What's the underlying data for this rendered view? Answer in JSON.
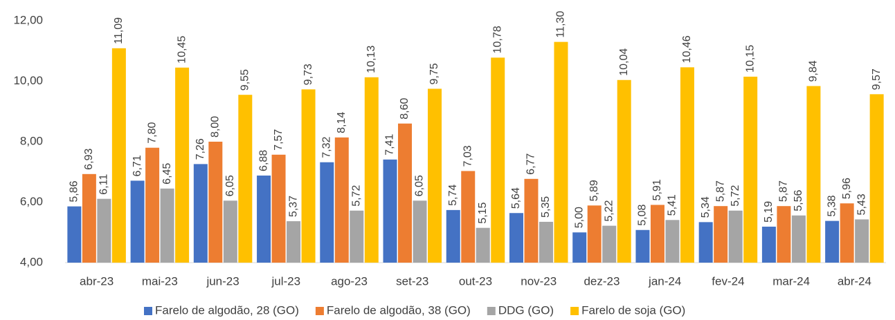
{
  "chart_data": {
    "type": "bar",
    "categories": [
      "abr-23",
      "mai-23",
      "jun-23",
      "jul-23",
      "ago-23",
      "set-23",
      "out-23",
      "nov-23",
      "dez-23",
      "jan-24",
      "fev-24",
      "mar-24",
      "abr-24"
    ],
    "series": [
      {
        "name": "Farelo de algodão, 28 (GO)",
        "color": "#4472c4",
        "values": [
          5.86,
          6.71,
          7.26,
          6.88,
          7.32,
          7.41,
          5.74,
          5.64,
          5.0,
          5.08,
          5.34,
          5.19,
          5.38
        ],
        "value_labels": [
          "5,86",
          "6,71",
          "7,26",
          "6,88",
          "7,32",
          "7,41",
          "5,74",
          "5,64",
          "5,00",
          "5,08",
          "5,34",
          "5,19",
          "5,38"
        ]
      },
      {
        "name": "Farelo de algodão, 38 (GO)",
        "color": "#ed7d31",
        "values": [
          6.93,
          7.8,
          8.0,
          7.57,
          8.14,
          8.6,
          7.03,
          6.77,
          5.89,
          5.91,
          5.87,
          5.87,
          5.96
        ],
        "value_labels": [
          "6,93",
          "7,80",
          "8,00",
          "7,57",
          "8,14",
          "8,60",
          "7,03",
          "6,77",
          "5,89",
          "5,91",
          "5,87",
          "5,87",
          "5,96"
        ]
      },
      {
        "name": "DDG (GO)",
        "color": "#a5a5a5",
        "values": [
          6.11,
          6.45,
          6.05,
          5.37,
          5.72,
          6.05,
          5.15,
          5.35,
          5.22,
          5.41,
          5.72,
          5.56,
          5.43
        ],
        "value_labels": [
          "6,11",
          "6,45",
          "6,05",
          "5,37",
          "5,72",
          "6,05",
          "5,15",
          "5,35",
          "5,22",
          "5,41",
          "5,72",
          "5,56",
          "5,43"
        ]
      },
      {
        "name": "Farelo de soja (GO)",
        "color": "#ffc000",
        "values": [
          11.09,
          10.45,
          9.55,
          9.73,
          10.13,
          9.75,
          10.78,
          11.3,
          10.04,
          10.46,
          10.15,
          9.84,
          9.57
        ],
        "value_labels": [
          "11,09",
          "10,45",
          "9,55",
          "9,73",
          "10,13",
          "9,75",
          "10,78",
          "11,30",
          "10,04",
          "10,46",
          "10,15",
          "9,84",
          "9,57"
        ]
      }
    ],
    "ylim": [
      4,
      12
    ],
    "yticks": [
      {
        "value": 4,
        "label": "4,00"
      },
      {
        "value": 6,
        "label": "6,00"
      },
      {
        "value": 8,
        "label": "8,00"
      },
      {
        "value": 10,
        "label": "10,00"
      },
      {
        "value": 12,
        "label": "12,00"
      }
    ],
    "grid": false,
    "legend": "bottom"
  }
}
